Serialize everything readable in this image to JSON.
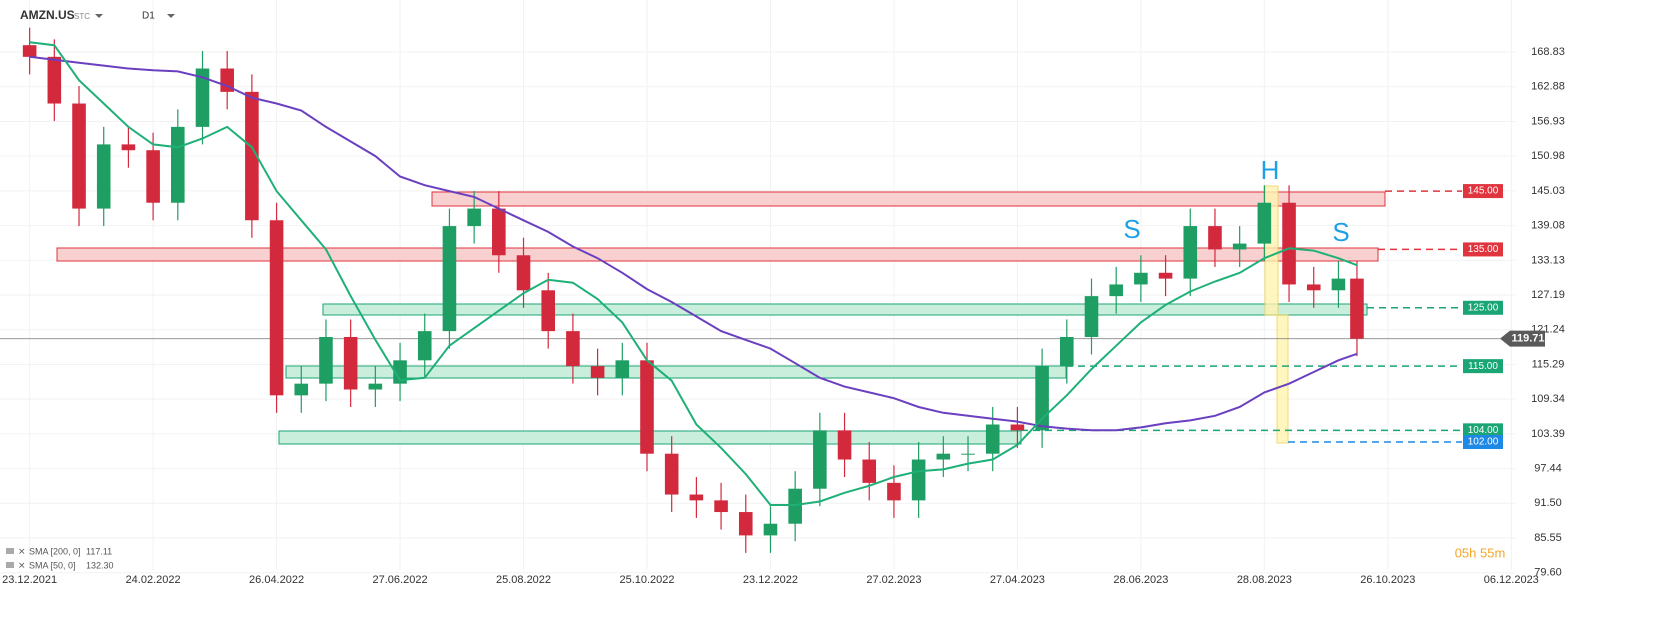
{
  "header": {
    "symbol": "AMZN.US",
    "market": "STC",
    "interval": "D1"
  },
  "chart_data": {
    "type": "candlestick",
    "x": [
      0,
      2,
      4,
      6,
      8,
      10,
      12,
      14,
      16,
      18,
      20,
      22,
      24,
      26,
      28,
      30,
      32,
      34,
      36,
      38,
      40,
      42,
      44,
      46,
      48,
      50,
      52,
      54,
      56,
      58,
      60,
      62,
      64,
      66,
      68,
      70,
      72,
      74,
      76,
      78,
      80,
      82,
      84,
      86,
      88,
      90,
      92,
      94,
      96,
      98,
      100,
      102,
      104,
      106,
      107.5
    ],
    "open": [
      170,
      168,
      160,
      142,
      153,
      152,
      143,
      156,
      166,
      162,
      140,
      110,
      112,
      120,
      111,
      112,
      116,
      121,
      139,
      142,
      134,
      128,
      121,
      115,
      113,
      116,
      100,
      93,
      92,
      90,
      86,
      88,
      94,
      104,
      99,
      95,
      92,
      99,
      100,
      100,
      105,
      104,
      115,
      120,
      127,
      129,
      131,
      130,
      139,
      135,
      136,
      143,
      129,
      128,
      130
    ],
    "high": [
      173,
      171,
      163,
      156,
      156,
      155,
      159,
      169,
      169,
      165,
      143,
      115,
      123,
      123,
      115,
      119,
      124,
      142,
      145,
      145,
      137,
      131,
      124,
      118,
      119,
      119,
      103,
      96,
      95,
      93,
      91,
      97,
      107,
      107,
      102,
      98,
      102,
      103,
      103,
      108,
      108,
      118,
      123,
      130,
      132,
      134,
      134,
      142,
      142,
      139,
      146,
      146,
      132,
      133,
      133
    ],
    "low": [
      165,
      157,
      139,
      139,
      149,
      140,
      140,
      153,
      159,
      137,
      107,
      107,
      109,
      108,
      108,
      109,
      113,
      118,
      136,
      131,
      125,
      118,
      112,
      110,
      110,
      97,
      90,
      89,
      87,
      83,
      83,
      85,
      91,
      96,
      92,
      89,
      89,
      96,
      97,
      97,
      101,
      101,
      112,
      117,
      124,
      126,
      127,
      127,
      132,
      132,
      133,
      126,
      125,
      125,
      116.7
    ],
    "close": [
      168,
      160,
      142,
      153,
      152,
      143,
      156,
      166,
      162,
      140,
      110,
      112,
      120,
      111,
      112,
      116,
      121,
      139,
      142,
      134,
      128,
      121,
      115,
      113,
      116,
      100,
      93,
      92,
      90,
      86,
      88,
      94,
      104,
      99,
      95,
      92,
      99,
      100,
      100,
      105,
      104,
      115,
      120,
      127,
      129,
      131,
      130,
      139,
      135,
      136,
      143,
      129,
      128,
      130,
      119.71
    ],
    "up_color": "#1e9e63",
    "down_color": "#d3293d",
    "series": [
      {
        "name": "SMA [200, 0]",
        "color": "#6a3fc0",
        "last_label": "117.11",
        "values": [
          168,
          167.5,
          167,
          166.5,
          166,
          165.7,
          165.5,
          164.5,
          163,
          161,
          160,
          158.8,
          156,
          153.5,
          151,
          147.5,
          146,
          145,
          144,
          142,
          140,
          138,
          135.5,
          133.5,
          131,
          128.2,
          126,
          123.5,
          121,
          119.5,
          118,
          115.5,
          113,
          111.5,
          110.5,
          109.5,
          108,
          107,
          106.5,
          106,
          105.5,
          104.7,
          104.3,
          104,
          104,
          104.5,
          105.2,
          105.7,
          106.5,
          108,
          110.5,
          112,
          114,
          116,
          117.11
        ]
      },
      {
        "name": "SMA [50, 0]",
        "color": "#1fb078",
        "last_label": "132.30",
        "values": [
          170.5,
          170,
          164,
          160,
          156,
          153,
          152.5,
          154,
          156,
          152.5,
          145,
          140,
          135,
          127,
          119.5,
          112.6,
          113,
          118.5,
          121.5,
          124.5,
          127.5,
          129.8,
          129.3,
          126.5,
          122.5,
          116,
          112.5,
          105,
          101,
          96.5,
          91.2,
          91.2,
          91.8,
          93.3,
          94.5,
          96,
          97,
          97.3,
          98.3,
          99,
          101.5,
          106,
          110,
          114.5,
          118.5,
          122.5,
          125.5,
          127.8,
          129.5,
          131,
          133.5,
          135.2,
          134.8,
          133.5,
          132.3
        ]
      }
    ],
    "xlim": [
      -2.4,
      120.3
    ],
    "xticks": [
      {
        "value": 0,
        "label": "23.12.2021"
      },
      {
        "value": 10,
        "label": "24.02.2022"
      },
      {
        "value": 20,
        "label": "26.04.2022"
      },
      {
        "value": 30,
        "label": "27.06.2022"
      },
      {
        "value": 40,
        "label": "25.08.2022"
      },
      {
        "value": 50,
        "label": "25.10.2022"
      },
      {
        "value": 60,
        "label": "23.12.2022"
      },
      {
        "value": 70,
        "label": "27.02.2023"
      },
      {
        "value": 80,
        "label": "27.04.2023"
      },
      {
        "value": 90,
        "label": "28.06.2023"
      },
      {
        "value": 100,
        "label": "28.08.2023"
      },
      {
        "value": 110,
        "label": "26.10.2023"
      },
      {
        "value": 120,
        "label": "06.12.2023"
      }
    ],
    "ylim": [
      74.93,
      177.74
    ],
    "yticks": [
      168.83,
      162.88,
      156.93,
      150.98,
      145.03,
      139.08,
      133.13,
      127.19,
      121.24,
      115.29,
      109.34,
      103.39,
      97.44,
      {
        "value": 91.5,
        "label": "91.50"
      },
      85.55,
      {
        "value": 79.6,
        "label": "79.60"
      }
    ],
    "grid": true,
    "levels": [
      {
        "value": 145,
        "label": "145.00",
        "color": "#e0343f"
      },
      {
        "value": 135,
        "label": "135.00",
        "color": "#e0343f"
      },
      {
        "value": 125,
        "label": "125.00",
        "color": "#1aa574"
      },
      {
        "value": 115,
        "label": "115.00",
        "color": "#1aa574"
      },
      {
        "value": 104,
        "label": "104.00",
        "color": "#1aa574"
      },
      {
        "value": 102,
        "label": "102.00",
        "color": "#1e88e5"
      }
    ],
    "last_price": {
      "value": 119.71,
      "label": "119.71"
    },
    "annotations": [
      "H",
      "S",
      "S"
    ],
    "countdown": "05h 55m"
  }
}
